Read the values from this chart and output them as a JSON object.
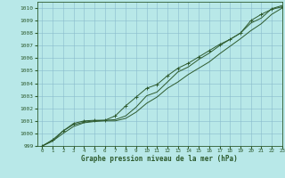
{
  "title": "Graphe pression niveau de la mer (hPa)",
  "xlim": [
    -0.5,
    23
  ],
  "ylim": [
    999,
    1010.5
  ],
  "xticks": [
    0,
    1,
    2,
    3,
    4,
    5,
    6,
    7,
    8,
    9,
    10,
    11,
    12,
    13,
    14,
    15,
    16,
    17,
    18,
    19,
    20,
    21,
    22,
    23
  ],
  "yticks": [
    999,
    1000,
    1001,
    1002,
    1003,
    1004,
    1005,
    1006,
    1007,
    1008,
    1009,
    1010
  ],
  "background_color": "#b8e8e8",
  "grid_color": "#88bbcc",
  "line_color": "#2d5a2d",
  "line1_x": [
    0,
    1,
    2,
    3,
    4,
    5,
    6,
    7,
    8,
    9,
    10,
    11,
    12,
    13,
    14,
    15,
    16,
    17,
    18,
    19,
    20,
    21,
    22,
    23
  ],
  "line1_y": [
    999.0,
    999.4,
    1000.2,
    1000.7,
    1000.9,
    1001.0,
    1001.05,
    1001.1,
    1001.4,
    1002.1,
    1003.0,
    1003.3,
    1004.1,
    1004.9,
    1005.3,
    1005.9,
    1006.4,
    1007.0,
    1007.5,
    1008.0,
    1008.8,
    1009.2,
    1009.95,
    1010.2
  ],
  "line2_x": [
    0,
    1,
    2,
    3,
    4,
    5,
    6,
    7,
    8,
    9,
    10,
    11,
    12,
    13,
    14,
    15,
    16,
    17,
    18,
    19,
    20,
    21,
    22,
    23
  ],
  "line2_y": [
    999.0,
    999.5,
    1000.2,
    1000.8,
    1001.0,
    1001.05,
    1001.05,
    1001.4,
    1002.2,
    1002.9,
    1003.6,
    1003.9,
    1004.6,
    1005.2,
    1005.6,
    1006.1,
    1006.6,
    1007.1,
    1007.5,
    1008.0,
    1009.0,
    1009.5,
    1009.9,
    1010.1
  ],
  "line3_x": [
    0,
    1,
    2,
    3,
    4,
    5,
    6,
    7,
    8,
    9,
    10,
    11,
    12,
    13,
    14,
    15,
    16,
    17,
    18,
    19,
    20,
    21,
    22,
    23
  ],
  "line3_y": [
    999.0,
    999.4,
    1000.0,
    1000.55,
    1000.85,
    1000.95,
    1001.0,
    1001.0,
    1001.2,
    1001.7,
    1002.4,
    1002.9,
    1003.6,
    1004.1,
    1004.7,
    1005.2,
    1005.7,
    1006.35,
    1006.95,
    1007.55,
    1008.2,
    1008.75,
    1009.5,
    1010.0
  ]
}
